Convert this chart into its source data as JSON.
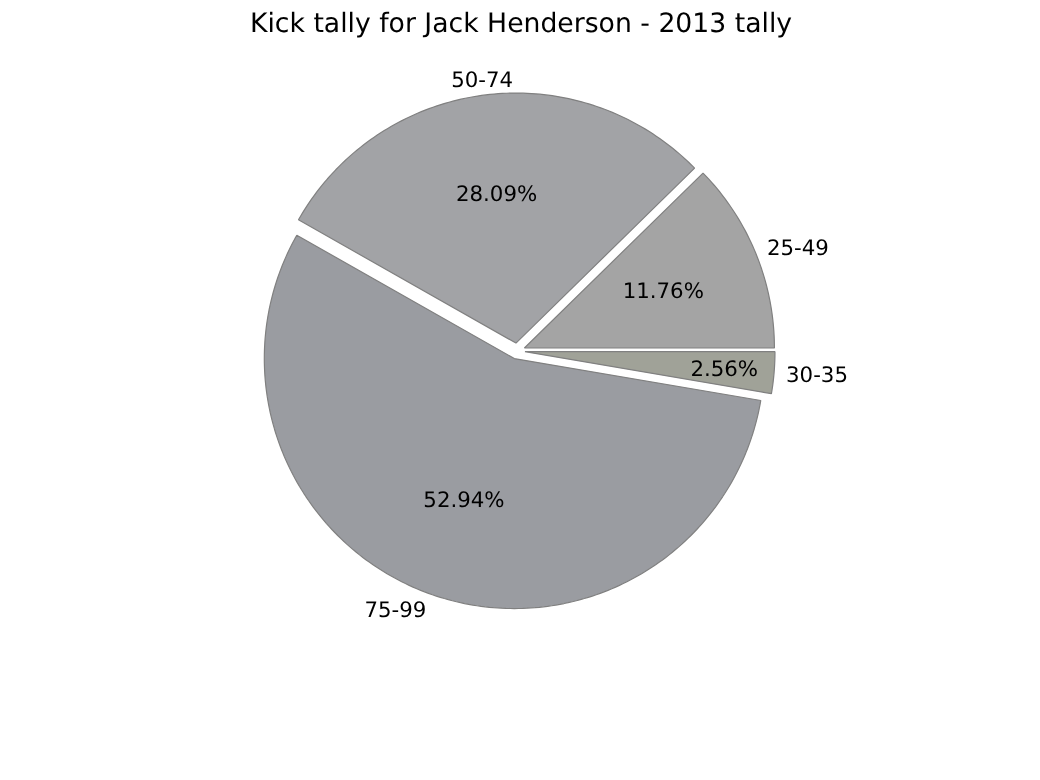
{
  "chart_data": {
    "type": "pie",
    "title": "Kick tally for Jack Henderson - 2013 tally",
    "categories": [
      "25-49",
      "50-74",
      "75-99",
      "30-35"
    ],
    "values": [
      11.76,
      28.09,
      52.94,
      2.56
    ],
    "colors": [
      "#a4a4a4",
      "#a2a3a6",
      "#9a9ca1",
      "#a0a298"
    ],
    "value_labels": [
      "11.76%",
      "28.09%",
      "52.94%",
      "2.56%"
    ]
  }
}
